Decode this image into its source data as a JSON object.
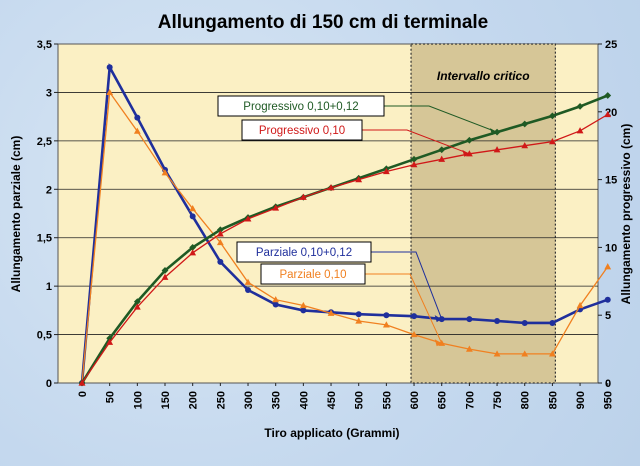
{
  "chart_data": {
    "type": "line",
    "title": "Allungamento di 150 cm di terminale",
    "xlabel": "Tiro applicato (Grammi)",
    "ylabel_left": "Allungamento parziale (cm)",
    "ylabel_right": "Allungamento progressivo (cm)",
    "ylim_left": [
      0,
      3.5
    ],
    "ylim_right": [
      0,
      25
    ],
    "yticks_left": [
      "0",
      "0,5",
      "1",
      "1,5",
      "2",
      "2,5",
      "3",
      "3,5"
    ],
    "yticks_right": [
      "0",
      "5",
      "10",
      "15",
      "20",
      "25"
    ],
    "categories": [
      "0",
      "50",
      "100",
      "150",
      "200",
      "250",
      "300",
      "350",
      "400",
      "450",
      "500",
      "550",
      "600",
      "650",
      "700",
      "750",
      "800",
      "850",
      "900",
      "950"
    ],
    "critical_range": {
      "label": "Intervallo critico",
      "from": "600",
      "to": "850"
    },
    "series": [
      {
        "name": "Parziale 0,10+0,12",
        "axis": "left",
        "color": "#1f2f9c",
        "marker": "circle",
        "values": [
          0,
          3.26,
          2.74,
          2.2,
          1.72,
          1.25,
          0.96,
          0.81,
          0.75,
          0.73,
          0.71,
          0.7,
          0.69,
          0.66,
          0.66,
          0.64,
          0.62,
          0.62,
          0.76,
          0.86
        ]
      },
      {
        "name": "Parziale 0,10",
        "axis": "left",
        "color": "#f08020",
        "marker": "triangle",
        "values": [
          0,
          3.0,
          2.6,
          2.17,
          1.8,
          1.45,
          1.04,
          0.86,
          0.8,
          0.72,
          0.64,
          0.6,
          0.5,
          0.41,
          0.35,
          0.3,
          0.3,
          0.3,
          0.8,
          1.2
        ]
      },
      {
        "name": "Progressivo 0,10+0,12",
        "axis": "right",
        "color": "#1f5a24",
        "marker": "diamond",
        "values": [
          0,
          3.3,
          6.0,
          8.3,
          10.0,
          11.3,
          12.2,
          13.0,
          13.7,
          14.4,
          15.1,
          15.8,
          16.5,
          17.2,
          17.9,
          18.5,
          19.1,
          19.7,
          20.4,
          21.2
        ]
      },
      {
        "name": "Progressivo 0,10",
        "axis": "right",
        "color": "#d01818",
        "marker": "triangle",
        "values": [
          0,
          3.0,
          5.6,
          7.8,
          9.6,
          11.0,
          12.1,
          12.9,
          13.7,
          14.4,
          15.0,
          15.6,
          16.1,
          16.5,
          16.9,
          17.2,
          17.5,
          17.8,
          18.6,
          19.8
        ]
      }
    ],
    "callouts": [
      {
        "series": 2,
        "text": "Progressivo 0,10+0,12",
        "anchor_index": 15
      },
      {
        "series": 3,
        "text": "Progressivo 0,10",
        "anchor_index": 14
      },
      {
        "series": 0,
        "text": "Parziale 0,10+0,12",
        "anchor_index": 13
      },
      {
        "series": 1,
        "text": "Parziale 0,10",
        "anchor_index": 13
      }
    ]
  }
}
